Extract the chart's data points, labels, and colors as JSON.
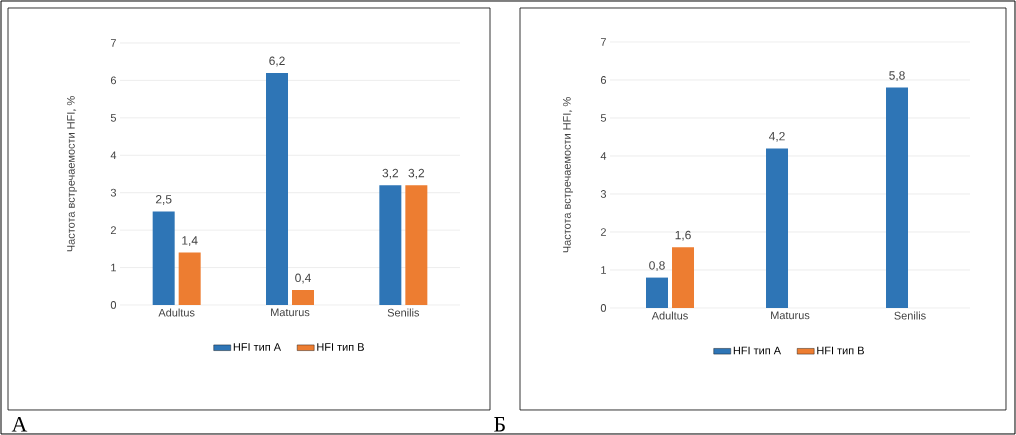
{
  "chart_data": [
    {
      "type": "bar",
      "ylabel": "Частота встречаемости HFI, %",
      "categories": [
        "Adultus",
        "Maturus",
        "Senilis"
      ],
      "series": [
        {
          "name": "HFI тип А",
          "color": "#2e75b6",
          "values": [
            2.5,
            6.2,
            3.2
          ],
          "value_labels": [
            "2,5",
            "6,2",
            "3,2"
          ]
        },
        {
          "name": "HFI тип В",
          "color": "#ed7d31",
          "values": [
            1.4,
            0.4,
            3.2
          ],
          "value_labels": [
            "1,4",
            "0,4",
            "3,2"
          ]
        }
      ],
      "ylim": [
        0,
        7
      ],
      "yticks": [
        0,
        1,
        2,
        3,
        4,
        5,
        6,
        7
      ],
      "grid": "y",
      "legend": "bottom",
      "annotations": [
        "А"
      ]
    },
    {
      "type": "bar",
      "ylabel": "Частота встречаемости HFI, %",
      "categories": [
        "Adultus",
        "Maturus",
        "Senilis"
      ],
      "series": [
        {
          "name": "HFI тип А",
          "color": "#2e75b6",
          "values": [
            0.8,
            4.2,
            5.8
          ],
          "value_labels": [
            "0,8",
            "4,2",
            "5,8"
          ]
        },
        {
          "name": "HFI тип В",
          "color": "#ed7d31",
          "values": [
            1.6,
            null,
            null
          ],
          "value_labels": [
            "1,6",
            null,
            null
          ]
        }
      ],
      "ylim": [
        0,
        7
      ],
      "yticks": [
        0,
        1,
        2,
        3,
        4,
        5,
        6,
        7
      ],
      "grid": "y",
      "legend": "bottom",
      "annotations": [
        "Б"
      ]
    }
  ]
}
